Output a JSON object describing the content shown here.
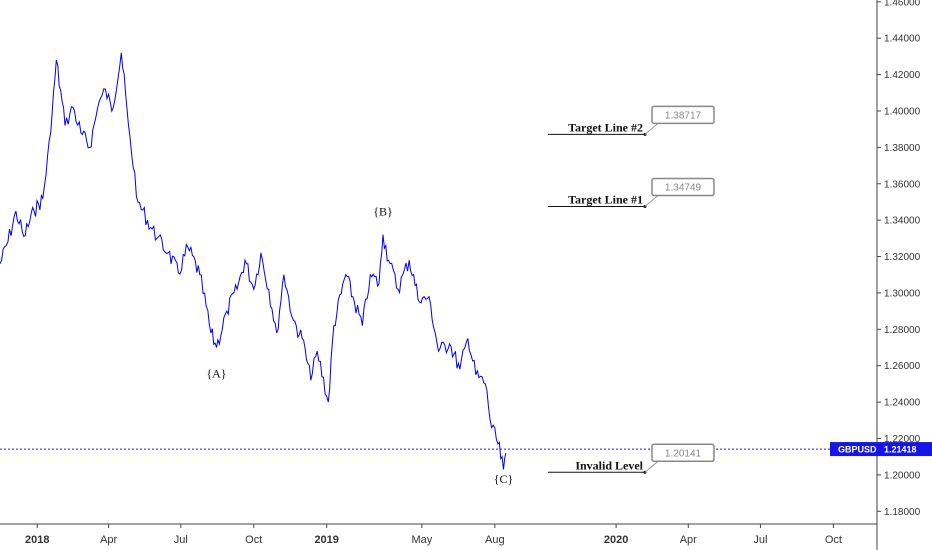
{
  "chart_data": {
    "type": "line",
    "symbol": "GBPUSD",
    "last_price": "1.21418",
    "colors": {
      "price": "#0000ee",
      "badge": "#1515e6",
      "current_line": "#2020cc"
    },
    "y_axis": {
      "range": [
        1.173,
        1.461
      ],
      "ticks": [
        "1.46000",
        "1.44000",
        "1.42000",
        "1.40000",
        "1.38000",
        "1.36000",
        "1.34000",
        "1.32000",
        "1.30000",
        "1.28000",
        "1.26000",
        "1.24000",
        "1.22000",
        "1.20000",
        "1.18000"
      ],
      "side": "right"
    },
    "x_axis": {
      "range": [
        "2017-11-15",
        "2020-11-25"
      ],
      "ticks": [
        {
          "label": "2018",
          "date": "2018-01-01"
        },
        {
          "label": "Apr",
          "date": "2018-04-01"
        },
        {
          "label": "Jul",
          "date": "2018-07-01"
        },
        {
          "label": "Oct",
          "date": "2018-10-01"
        },
        {
          "label": "2019",
          "date": "2019-01-01"
        },
        {
          "label": "May",
          "date": "2019-05-01"
        },
        {
          "label": "Aug",
          "date": "2019-08-01"
        },
        {
          "label": "2020",
          "date": "2020-01-01"
        },
        {
          "label": "Apr",
          "date": "2020-04-01"
        },
        {
          "label": "Jul",
          "date": "2020-07-01"
        },
        {
          "label": "Oct",
          "date": "2020-10-01"
        }
      ]
    },
    "series": [
      {
        "points": [
          [
            "2017-11-15",
            1.316
          ],
          [
            "2017-11-25",
            1.328
          ],
          [
            "2017-12-05",
            1.345
          ],
          [
            "2017-12-15",
            1.331
          ],
          [
            "2017-12-28",
            1.345
          ],
          [
            "2018-01-08",
            1.352
          ],
          [
            "2018-01-18",
            1.388
          ],
          [
            "2018-01-25",
            1.428
          ],
          [
            "2018-02-05",
            1.392
          ],
          [
            "2018-02-15",
            1.402
          ],
          [
            "2018-02-25",
            1.388
          ],
          [
            "2018-03-08",
            1.38
          ],
          [
            "2018-03-20",
            1.405
          ],
          [
            "2018-03-28",
            1.412
          ],
          [
            "2018-04-05",
            1.4
          ],
          [
            "2018-04-17",
            1.432
          ],
          [
            "2018-04-26",
            1.392
          ],
          [
            "2018-05-08",
            1.35
          ],
          [
            "2018-05-20",
            1.34
          ],
          [
            "2018-06-01",
            1.33
          ],
          [
            "2018-06-15",
            1.322
          ],
          [
            "2018-06-28",
            1.311
          ],
          [
            "2018-07-10",
            1.325
          ],
          [
            "2018-07-25",
            1.31
          ],
          [
            "2018-08-08",
            1.278
          ],
          [
            "2018-08-15",
            1.27
          ],
          [
            "2018-08-28",
            1.29
          ],
          [
            "2018-09-10",
            1.302
          ],
          [
            "2018-09-20",
            1.318
          ],
          [
            "2018-10-01",
            1.302
          ],
          [
            "2018-10-10",
            1.322
          ],
          [
            "2018-10-20",
            1.302
          ],
          [
            "2018-10-30",
            1.278
          ],
          [
            "2018-11-08",
            1.31
          ],
          [
            "2018-11-20",
            1.285
          ],
          [
            "2018-12-01",
            1.275
          ],
          [
            "2018-12-12",
            1.252
          ],
          [
            "2018-12-20",
            1.268
          ],
          [
            "2019-01-03",
            1.24
          ],
          [
            "2019-01-10",
            1.282
          ],
          [
            "2019-01-25",
            1.31
          ],
          [
            "2019-02-05",
            1.295
          ],
          [
            "2019-02-15",
            1.282
          ],
          [
            "2019-02-25",
            1.31
          ],
          [
            "2019-03-08",
            1.305
          ],
          [
            "2019-03-13",
            1.332
          ],
          [
            "2019-03-20",
            1.318
          ],
          [
            "2019-04-01",
            1.302
          ],
          [
            "2019-04-15",
            1.318
          ],
          [
            "2019-04-28",
            1.295
          ],
          [
            "2019-05-10",
            1.298
          ],
          [
            "2019-05-22",
            1.268
          ],
          [
            "2019-06-05",
            1.272
          ],
          [
            "2019-06-18",
            1.258
          ],
          [
            "2019-06-28",
            1.275
          ],
          [
            "2019-07-08",
            1.255
          ],
          [
            "2019-07-20",
            1.25
          ],
          [
            "2019-07-28",
            1.226
          ],
          [
            "2019-08-05",
            1.217
          ],
          [
            "2019-08-12",
            1.203
          ],
          [
            "2019-08-15",
            1.212
          ]
        ]
      }
    ],
    "wave_labels": [
      {
        "label": "{A}",
        "date": "2018-08-15",
        "value": 1.2535
      },
      {
        "label": "{B}",
        "date": "2019-03-13",
        "value": 1.3425
      },
      {
        "label": "{C}",
        "date": "2019-08-12",
        "value": 1.1955
      }
    ],
    "levels": [
      {
        "name": "Target Line #2",
        "value": "1.38717"
      },
      {
        "name": "Target Line #1",
        "value": "1.34749"
      },
      {
        "name": "Invalid Level",
        "value": "1.20141"
      }
    ]
  }
}
